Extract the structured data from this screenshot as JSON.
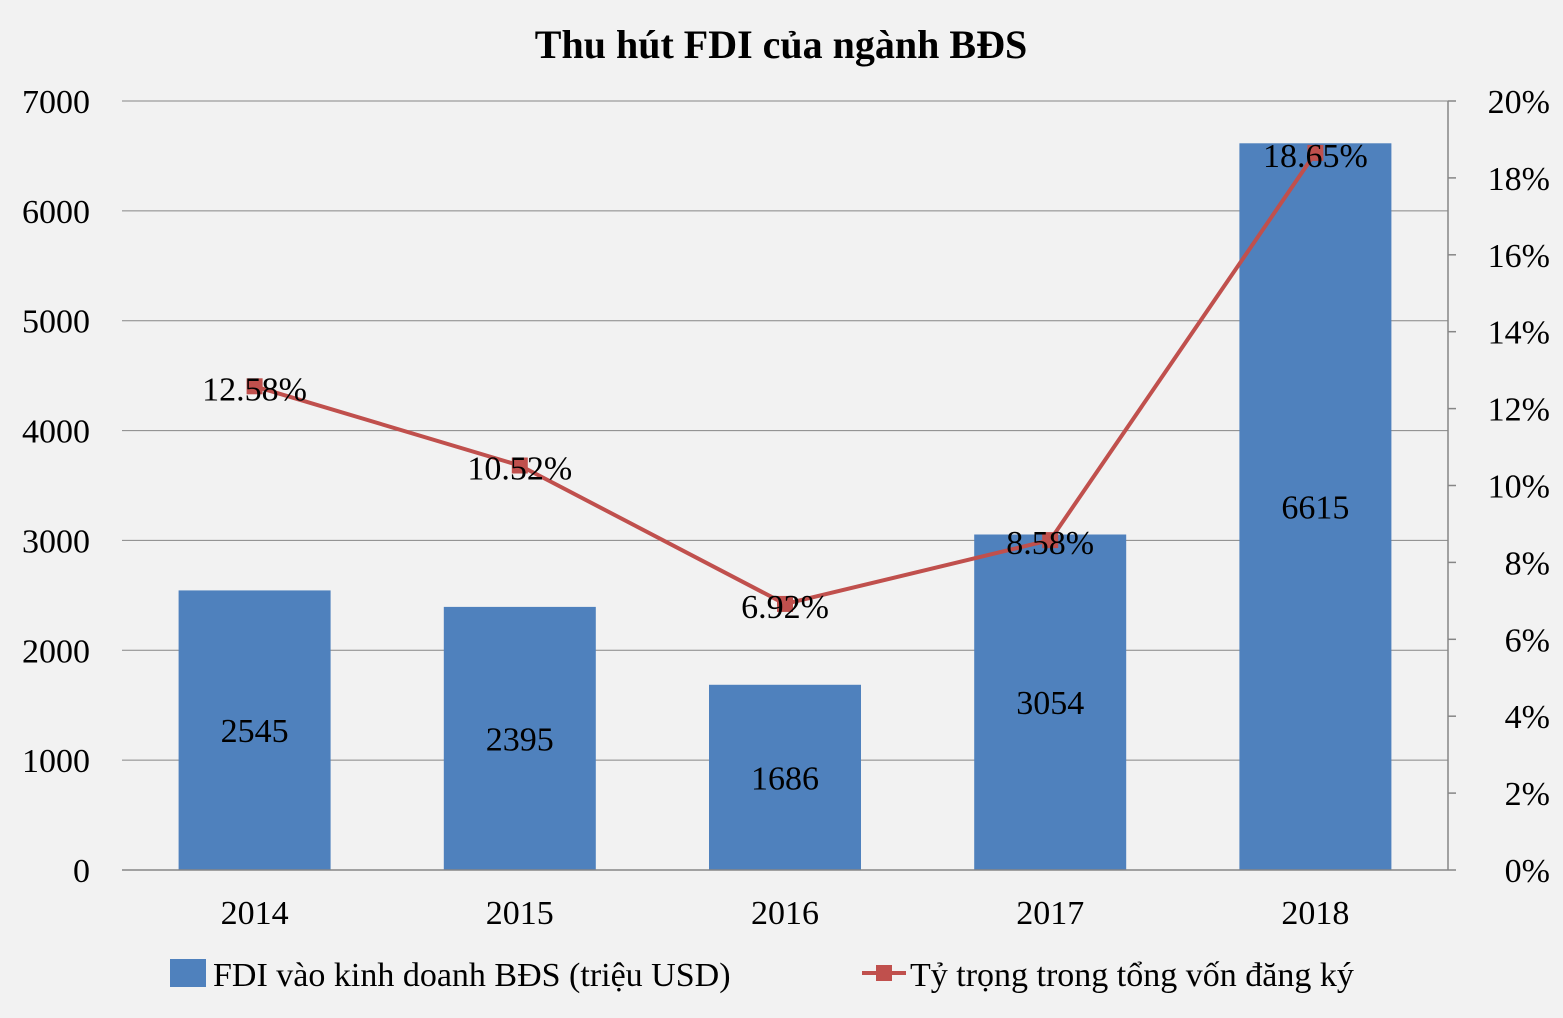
{
  "chart_data": {
    "type": "bar",
    "title": "Thu hút FDI của ngành BĐS",
    "categories": [
      "2014",
      "2015",
      "2016",
      "2017",
      "2018"
    ],
    "series": [
      {
        "name": "FDI vào kinh doanh BĐS (triệu USD)",
        "type": "bar",
        "axis": "left",
        "values": [
          2545,
          2395,
          1686,
          3054,
          6615
        ],
        "labels": [
          "2545",
          "2395",
          "1686",
          "3054",
          "6615"
        ],
        "color": "#4f81bd"
      },
      {
        "name": "Tỷ trọng trong tổng vốn đăng ký",
        "type": "line",
        "axis": "right",
        "values": [
          12.58,
          10.52,
          6.92,
          8.58,
          18.65
        ],
        "labels": [
          "12.58%",
          "10.52%",
          "6.92%",
          "8.58%",
          "18.65%"
        ],
        "color": "#c0504d",
        "marker": "square"
      }
    ],
    "y_left": {
      "range": [
        0,
        7000
      ],
      "ticks": [
        "0",
        "1000",
        "2000",
        "3000",
        "4000",
        "5000",
        "6000",
        "7000"
      ]
    },
    "y_right": {
      "range": [
        0,
        20
      ],
      "ticks": [
        "0%",
        "2%",
        "4%",
        "6%",
        "8%",
        "10%",
        "12%",
        "14%",
        "16%",
        "18%",
        "20%"
      ]
    },
    "grid": true,
    "legend_position": "bottom",
    "colors": {
      "background": "#f2f2f2",
      "grid": "#868686"
    }
  }
}
